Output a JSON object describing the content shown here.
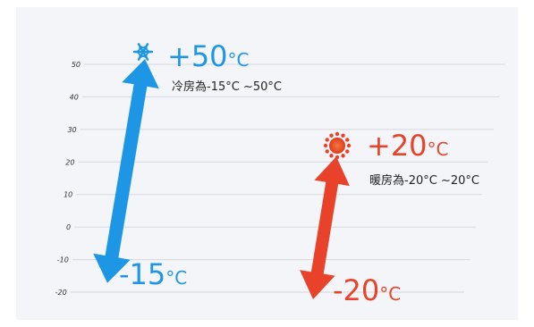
{
  "chart_data": {
    "type": "bar",
    "y_ticks": [
      "50",
      "40",
      "30",
      "20",
      "10",
      "0",
      "-10",
      "-20"
    ],
    "ylim": [
      -20,
      50
    ],
    "grid": true,
    "series": [
      {
        "low": -15,
        "high": 50,
        "color": "#1e96e6",
        "high_label": "+50",
        "low_label": "-15",
        "unit": "°C",
        "icon": "snowflake-icon",
        "range_text": "冷房為-15°C ~50°C"
      },
      {
        "low": -20,
        "high": 20,
        "color": "#e8432a",
        "high_label": "+20",
        "low_label": "-20",
        "unit": "°C",
        "icon": "sun-icon",
        "range_text": "暖房為-20°C ~20°C"
      }
    ]
  }
}
